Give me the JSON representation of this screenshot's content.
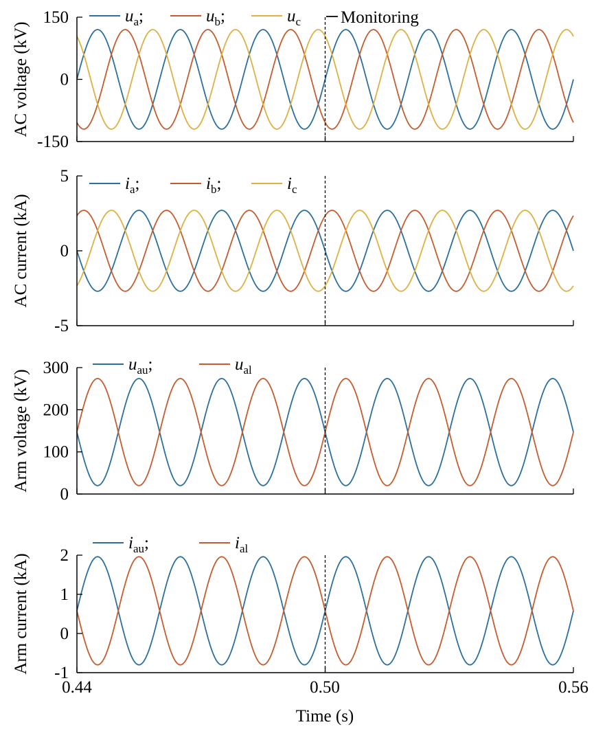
{
  "figure": {
    "xlabel": "Time (s)",
    "x_ticks": [
      "0.44",
      "0.50",
      "0.56"
    ],
    "event_annotation": "Monitoring"
  },
  "colors": {
    "blue": "#2a6f9e",
    "red": "#c65b2e",
    "yellow": "#deb042",
    "axis": "#000000",
    "marker": "#000000"
  },
  "chart_data": [
    {
      "type": "line",
      "ylabel": "AC voltage (kV)",
      "x_range": [
        0.44,
        0.56
      ],
      "ylim": [
        -150,
        150
      ],
      "yticks": [
        {
          "v": 150,
          "label": "150"
        },
        {
          "v": 0,
          "label": "0"
        },
        {
          "v": -150,
          "label": "-150"
        }
      ],
      "event_x": 0.5,
      "legend": {
        "position": "top",
        "entries": [
          {
            "main": "u",
            "sub": "a",
            "after": ";"
          },
          {
            "main": "u",
            "sub": "b",
            "after": ";"
          },
          {
            "main": "u",
            "sub": "c",
            "after": ""
          }
        ]
      },
      "series": [
        {
          "name": "u_a",
          "color": "blue",
          "freq": 50,
          "amplitude": 120,
          "offset": 0,
          "phase_deg": 0
        },
        {
          "name": "u_b",
          "color": "red",
          "freq": 50,
          "amplitude": 120,
          "offset": 0,
          "phase_deg": -120
        },
        {
          "name": "u_c",
          "color": "yellow",
          "freq": 50,
          "amplitude": 120,
          "offset": 0,
          "phase_deg": 120
        }
      ]
    },
    {
      "type": "line",
      "ylabel": "AC current (kA)",
      "x_range": [
        0.44,
        0.56
      ],
      "ylim": [
        -5,
        5
      ],
      "yticks": [
        {
          "v": 5,
          "label": "5"
        },
        {
          "v": 0,
          "label": "0"
        },
        {
          "v": -5,
          "label": "-5"
        }
      ],
      "event_x": 0.5,
      "legend": {
        "position": "top",
        "entries": [
          {
            "main": "i",
            "sub": "a",
            "after": ";"
          },
          {
            "main": "i",
            "sub": "b",
            "after": ";"
          },
          {
            "main": "i",
            "sub": "c",
            "after": ""
          }
        ]
      },
      "series": [
        {
          "name": "i_a",
          "color": "blue",
          "freq": 50,
          "amplitude": 2.7,
          "offset": 0,
          "phase_deg": 180
        },
        {
          "name": "i_b",
          "color": "red",
          "freq": 50,
          "amplitude": 2.7,
          "offset": 0,
          "phase_deg": 60
        },
        {
          "name": "i_c",
          "color": "yellow",
          "freq": 50,
          "amplitude": 2.7,
          "offset": 0,
          "phase_deg": -60
        }
      ]
    },
    {
      "type": "line",
      "ylabel": "Arm voltage (kV)",
      "x_range": [
        0.44,
        0.56
      ],
      "ylim": [
        0,
        300
      ],
      "yticks": [
        {
          "v": 300,
          "label": "300"
        },
        {
          "v": 200,
          "label": "200"
        },
        {
          "v": 100,
          "label": "100"
        },
        {
          "v": 0,
          "label": "0"
        }
      ],
      "event_x": 0.5,
      "legend": {
        "position": "top",
        "entries": [
          {
            "main": "u",
            "sub": "au",
            "after": ";"
          },
          {
            "main": "u",
            "sub": "al",
            "after": ""
          }
        ]
      },
      "series": [
        {
          "name": "u_au",
          "color": "blue",
          "freq": 50,
          "amplitude": 127,
          "offset": 147,
          "phase_deg": 180
        },
        {
          "name": "u_al",
          "color": "red",
          "freq": 50,
          "amplitude": 127,
          "offset": 147,
          "phase_deg": 0
        }
      ]
    },
    {
      "type": "line",
      "ylabel": "Arm current (kA)",
      "x_range": [
        0.44,
        0.56
      ],
      "ylim": [
        -1,
        2
      ],
      "yticks": [
        {
          "v": 2,
          "label": "2"
        },
        {
          "v": 1,
          "label": "1"
        },
        {
          "v": 0,
          "label": "0"
        },
        {
          "v": -1,
          "label": "-1"
        }
      ],
      "event_x": 0.5,
      "legend": {
        "position": "top",
        "entries": [
          {
            "main": "i",
            "sub": "au",
            "after": ";"
          },
          {
            "main": "i",
            "sub": "al",
            "after": ""
          }
        ]
      },
      "series": [
        {
          "name": "i_au",
          "color": "blue",
          "freq": 50,
          "amplitude": 1.38,
          "offset": 0.58,
          "phase_deg": 0
        },
        {
          "name": "i_al",
          "color": "red",
          "freq": 50,
          "amplitude": 1.38,
          "offset": 0.58,
          "phase_deg": 180
        }
      ]
    }
  ]
}
